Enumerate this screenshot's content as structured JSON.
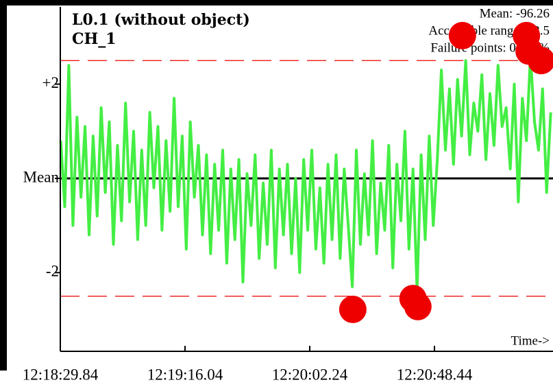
{
  "chart_data": {
    "type": "line",
    "title": "L0.1 (without object)",
    "subtitle": "CH_1",
    "annotations": [
      "Mean: -96.26",
      "Acceptable range: ±2.5",
      "Failure points: 0.487%"
    ],
    "x_label": "Time->",
    "x": [
      44310,
      44311.5,
      44313,
      44314.5,
      44316,
      44317.5,
      44319,
      44320.5,
      44322,
      44323.5,
      44325,
      44326.5,
      44328,
      44329.5,
      44331,
      44332.5,
      44334,
      44335.5,
      44337,
      44338.5,
      44340,
      44341.5,
      44343,
      44344.5,
      44346,
      44347.5,
      44349,
      44350.5,
      44352,
      44353.5,
      44355,
      44356.5,
      44358,
      44359.5,
      44361,
      44362.5,
      44364,
      44365.5,
      44367,
      44368.5,
      44370,
      44371.5,
      44373,
      44374.5,
      44376,
      44377.5,
      44379,
      44380.5,
      44382,
      44383.5,
      44385,
      44386.5,
      44388,
      44389.5,
      44391,
      44392.5,
      44394,
      44395.5,
      44397,
      44398.5,
      44400,
      44401.5,
      44403,
      44404.5,
      44406,
      44407.5,
      44409,
      44410.5,
      44412,
      44413.5,
      44415,
      44416.5,
      44418,
      44419.5,
      44421,
      44422.5,
      44424,
      44425.5,
      44427,
      44428.5,
      44430,
      44431.5,
      44433,
      44434.5,
      44436,
      44437.5,
      44439,
      44440.5,
      44442,
      44443.5,
      44445,
      44446.5,
      44448,
      44449.5,
      44451,
      44452.5,
      44454,
      44455.5,
      44457,
      44458.5,
      44460,
      44461.5,
      44463,
      44464.5,
      44466,
      44467.5,
      44469,
      44470.5,
      44472,
      44473.5,
      44475,
      44476.5,
      44478,
      44479.5,
      44481,
      44482.5,
      44484,
      44485.5,
      44487,
      44488.5,
      44490,
      44491.5
    ],
    "series": [
      {
        "color": "#44ee44",
        "values": [
          0.8,
          -0.6,
          2.4,
          -1.0,
          1.3,
          -0.4,
          1.1,
          -1.2,
          0.9,
          -0.8,
          1.5,
          -0.3,
          1.2,
          -1.4,
          0.7,
          -0.9,
          1.6,
          -0.5,
          1.0,
          -1.3,
          0.6,
          -1.0,
          1.4,
          -0.2,
          1.1,
          -1.1,
          0.8,
          -0.7,
          1.7,
          -0.6,
          0.9,
          -1.5,
          1.2,
          -0.4,
          0.7,
          -1.2,
          0.5,
          -1.6,
          0.3,
          -1.1,
          0.6,
          -1.8,
          0.2,
          -1.3,
          0.4,
          -2.2,
          0.1,
          -1.0,
          0.5,
          -1.7,
          -0.1,
          -1.4,
          0.6,
          -1.9,
          0.2,
          -1.2,
          0.3,
          -1.6,
          0.0,
          -2.0,
          0.4,
          -1.1,
          0.6,
          -1.5,
          -0.2,
          -1.8,
          0.3,
          -1.3,
          0.5,
          -1.7,
          0.2,
          -1.0,
          -2.3,
          0.6,
          -1.4,
          0.1,
          -1.2,
          0.8,
          -1.6,
          -0.1,
          -1.1,
          0.7,
          -1.9,
          0.3,
          -0.9,
          1.0,
          -1.5,
          0.2,
          -2.4,
          0.5,
          -1.3,
          0.9,
          -1.0,
          0.4,
          2.3,
          0.6,
          1.9,
          0.3,
          2.1,
          0.9,
          2.5,
          0.5,
          1.6,
          1.0,
          2.2,
          0.4,
          1.8,
          0.7,
          2.4,
          1.1,
          1.5,
          0.2,
          2.0,
          -0.5,
          1.7,
          0.8,
          2.6,
          1.2,
          0.6,
          1.9,
          -0.3,
          1.4
        ]
      }
    ],
    "failure_points": {
      "color": "#ee0000",
      "x": [
        44418.2,
        44440.5,
        44442.3,
        44458.8,
        44482.5,
        44483.5,
        44488.0
      ],
      "values": [
        -2.78,
        -2.55,
        -2.72,
        3.03,
        3.03,
        2.7,
        2.5
      ]
    },
    "limits": {
      "color": "#ee0000",
      "values": [
        2.5,
        -2.5
      ]
    },
    "mean_line_color": "#000000",
    "xlim": [
      44309.84,
      44492.35
    ],
    "xticks": [
      {
        "value": 44309.84,
        "label": "12:18:29.84"
      },
      {
        "value": 44356.04,
        "label": "12:19:16.04"
      },
      {
        "value": 44402.24,
        "label": "12:20:02.24"
      },
      {
        "value": 44448.44,
        "label": "12:20:48.44"
      }
    ],
    "ylim": [
      -3.67,
      3.64
    ],
    "yticks": [
      {
        "value": 2,
        "label": "+2"
      },
      {
        "value": 0,
        "label": "Mean"
      },
      -2
    ]
  }
}
